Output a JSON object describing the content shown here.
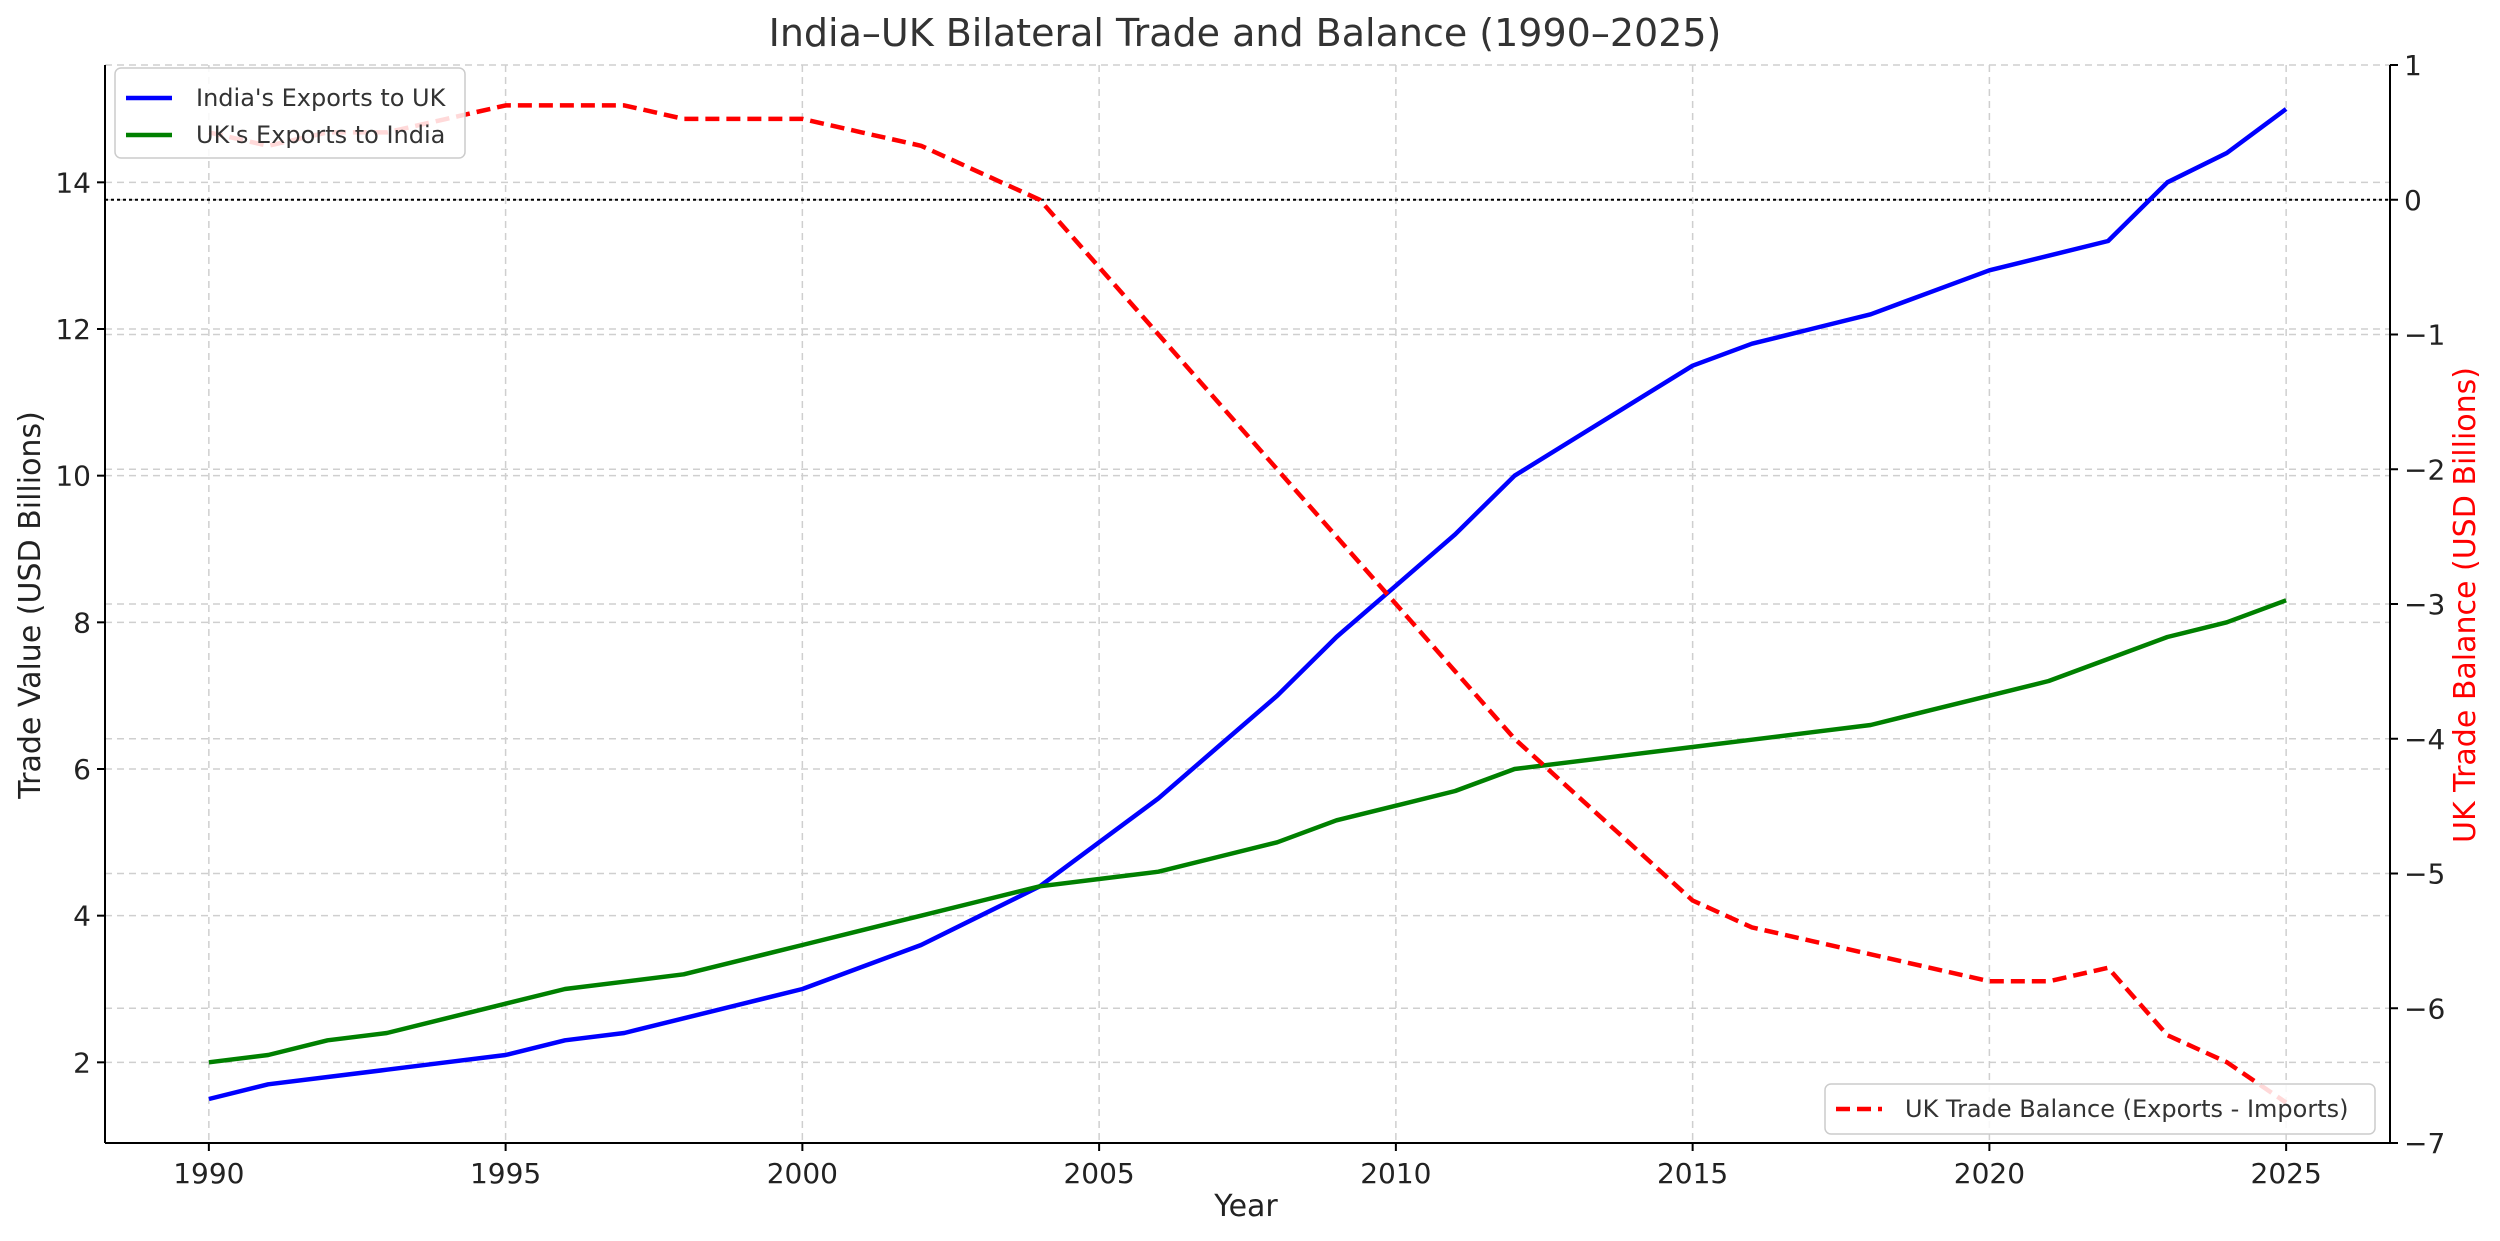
{
  "chart_data": {
    "type": "line",
    "title": "India–UK Bilateral Trade and Balance (1990–2025)",
    "xlabel": "Year",
    "ylabel": "Trade Value (USD Billions)",
    "y2label": "UK Trade Balance (USD Billions)",
    "xlim": [
      1988.25,
      2026.75
    ],
    "ylim": [
      0.9,
      15.6
    ],
    "y2lim": [
      -7.0,
      1.0
    ],
    "x_ticks": [
      1990,
      1995,
      2000,
      2005,
      2010,
      2015,
      2020,
      2025
    ],
    "y_ticks": [
      2,
      4,
      6,
      8,
      10,
      12,
      14
    ],
    "y2_ticks": [
      1,
      0,
      -1,
      -2,
      -3,
      -4,
      -5,
      -6,
      -7
    ],
    "y2_tick_labels": [
      "1",
      "0",
      "−1",
      "−2",
      "−3",
      "−4",
      "−5",
      "−6",
      "−7"
    ],
    "grid": true,
    "zero_line_y2": 0,
    "x": [
      1990,
      1991,
      1992,
      1993,
      1994,
      1995,
      1996,
      1997,
      1998,
      1999,
      2000,
      2001,
      2002,
      2003,
      2004,
      2005,
      2006,
      2007,
      2008,
      2009,
      2010,
      2011,
      2012,
      2013,
      2014,
      2015,
      2016,
      2017,
      2018,
      2019,
      2020,
      2021,
      2022,
      2023,
      2024,
      2025
    ],
    "series": [
      {
        "name": "India's Exports to UK",
        "axis": "left",
        "color": "#0000ff",
        "style": "solid",
        "values": [
          1.5,
          1.7,
          1.8,
          1.9,
          2.0,
          2.1,
          2.3,
          2.4,
          2.6,
          2.8,
          3.0,
          3.3,
          3.6,
          4.0,
          4.4,
          5.0,
          5.6,
          6.3,
          7.0,
          7.8,
          8.5,
          9.2,
          10.0,
          10.5,
          11.0,
          11.5,
          11.8,
          12.0,
          12.2,
          12.5,
          12.8,
          13.0,
          13.2,
          14.0,
          14.4,
          15.0
        ]
      },
      {
        "name": "UK's Exports to India",
        "axis": "left",
        "color": "#008000",
        "style": "solid",
        "values": [
          2.0,
          2.1,
          2.3,
          2.4,
          2.6,
          2.8,
          3.0,
          3.1,
          3.2,
          3.4,
          3.6,
          3.8,
          4.0,
          4.2,
          4.4,
          4.5,
          4.6,
          4.8,
          5.0,
          5.3,
          5.5,
          5.7,
          6.0,
          6.1,
          6.2,
          6.3,
          6.4,
          6.5,
          6.6,
          6.8,
          7.0,
          7.2,
          7.5,
          7.8,
          8.0,
          8.3
        ]
      },
      {
        "name": "UK Trade Balance (Exports - Imports)",
        "axis": "right",
        "color": "#ff0000",
        "style": "dashed",
        "values": [
          0.5,
          0.4,
          0.5,
          0.5,
          0.6,
          0.7,
          0.7,
          0.7,
          0.6,
          0.6,
          0.6,
          0.5,
          0.4,
          0.2,
          0.0,
          -0.5,
          -1.0,
          -1.5,
          -2.0,
          -2.5,
          -3.0,
          -3.5,
          -4.0,
          -4.4,
          -4.8,
          -5.2,
          -5.4,
          -5.5,
          -5.6,
          -5.7,
          -5.8,
          -5.8,
          -5.7,
          -6.2,
          -6.4,
          -6.7
        ]
      }
    ],
    "legend_left": {
      "placement": "upper-left",
      "entries": [
        "India's Exports to UK",
        "UK's Exports to India"
      ]
    },
    "legend_right": {
      "placement": "lower-right",
      "entries": [
        "UK Trade Balance (Exports - Imports)"
      ]
    }
  }
}
